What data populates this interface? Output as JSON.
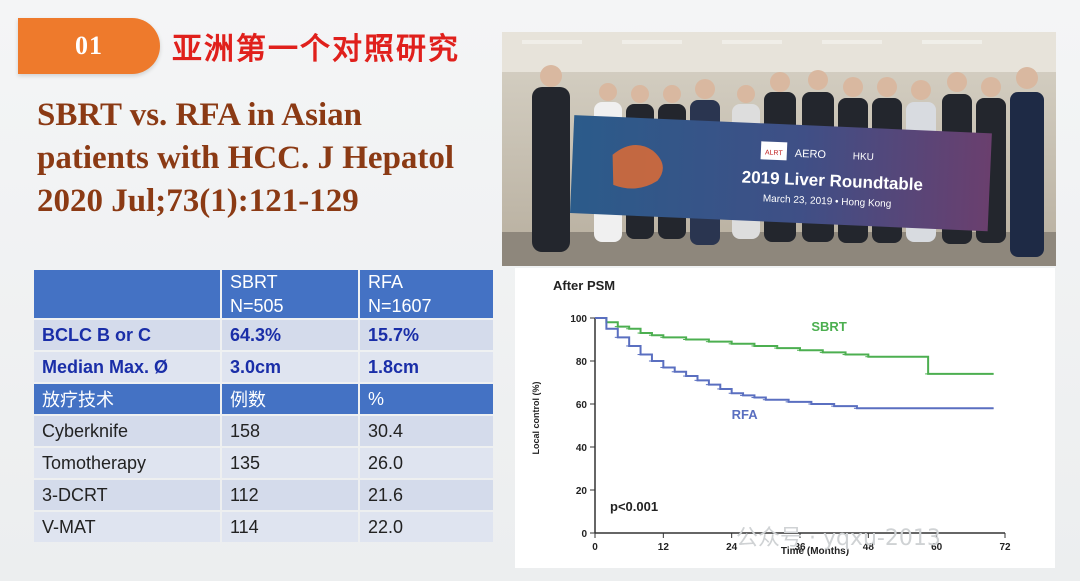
{
  "badge": {
    "number": "01"
  },
  "heading": "亚洲第一个对照研究",
  "citation": {
    "lines": [
      "SBRT vs. RFA in Asian",
      "patients with HCC. J Hepatol",
      "2020 Jul;73(1):121-129"
    ]
  },
  "photo": {
    "banner_title": "2019 Liver Roundtable",
    "banner_subtitle": "March 23, 2019 • Hong Kong",
    "logo_aero": "AERO",
    "logo_alrt": "ALRT",
    "logo_hku": "HKU"
  },
  "table": {
    "header": {
      "col1": "",
      "col2_line1": "SBRT",
      "col2_line2": "N=505",
      "col3_line1": "RFA",
      "col3_line2": "N=1607"
    },
    "rows_top": [
      {
        "label": "BCLC B or C",
        "sbrt": "64.3%",
        "rfa": "15.7%"
      },
      {
        "label": "Median Max. Ø",
        "sbrt": "3.0cm",
        "rfa": "1.8cm"
      }
    ],
    "subheader": {
      "col1": "放疗技术",
      "col2": "例数",
      "col3": "%"
    },
    "rows": [
      {
        "tech": "Cyberknife",
        "count": "158",
        "pct": "30.4"
      },
      {
        "tech": "Tomotherapy",
        "count": "135",
        "pct": "26.0"
      },
      {
        "tech": "3-DCRT",
        "count": "112",
        "pct": "21.6"
      },
      {
        "tech": "V-MAT",
        "count": "114",
        "pct": "22.0"
      }
    ]
  },
  "chart_data": {
    "type": "line",
    "title": "After PSM",
    "xlabel": "Time (Months)",
    "ylabel": "Local control (%)",
    "xlim": [
      0,
      72
    ],
    "ylim": [
      0,
      100
    ],
    "x_ticks": [
      0,
      12,
      24,
      36,
      48,
      60,
      72
    ],
    "y_ticks": [
      0,
      20,
      40,
      60,
      80,
      100
    ],
    "annotation": "p<0.001",
    "series": [
      {
        "name": "SBRT",
        "color": "#4caf50",
        "x": [
          0,
          2,
          4,
          6,
          8,
          10,
          12,
          16,
          20,
          24,
          28,
          32,
          36,
          40,
          44,
          48,
          52,
          56,
          58,
          58.5,
          62,
          66,
          70
        ],
        "y": [
          100,
          98,
          96,
          95,
          93,
          92,
          91,
          90,
          89,
          88,
          87,
          86,
          85,
          84,
          83,
          82,
          82,
          82,
          82,
          74,
          74,
          74,
          74
        ]
      },
      {
        "name": "RFA",
        "color": "#5a6fc0",
        "x": [
          0,
          2,
          4,
          6,
          8,
          10,
          12,
          14,
          16,
          18,
          20,
          22,
          24,
          26,
          28,
          30,
          34,
          38,
          42,
          46,
          50,
          54,
          60,
          66,
          70
        ],
        "y": [
          100,
          95,
          91,
          87,
          83,
          80,
          77,
          75,
          73,
          71,
          69,
          67,
          65,
          64,
          63,
          62,
          61,
          60,
          59,
          58,
          58,
          58,
          58,
          58,
          58
        ]
      }
    ]
  },
  "watermark": "公众号 · yqxu-2013"
}
